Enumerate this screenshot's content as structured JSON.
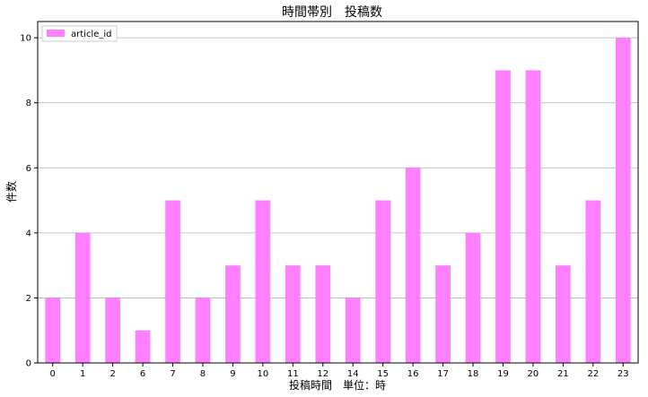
{
  "chart_data": {
    "type": "bar",
    "title": "時間帯別　投稿数",
    "xlabel": "投稿時間　単位：時",
    "ylabel": "件数",
    "categories": [
      "0",
      "1",
      "2",
      "6",
      "7",
      "8",
      "9",
      "10",
      "11",
      "12",
      "14",
      "15",
      "16",
      "17",
      "18",
      "19",
      "20",
      "21",
      "22",
      "23"
    ],
    "series": [
      {
        "name": "article_id",
        "values": [
          2,
          4,
          2,
          1,
          5,
          2,
          3,
          5,
          3,
          3,
          2,
          5,
          6,
          3,
          4,
          9,
          9,
          3,
          5,
          10
        ]
      }
    ],
    "ylim": [
      0,
      10.5
    ],
    "yticks": [
      "0",
      "2",
      "4",
      "6",
      "8",
      "10"
    ],
    "grid": "y",
    "legend_position": "top-left",
    "colors": {
      "bar": "#ff80ff"
    }
  }
}
